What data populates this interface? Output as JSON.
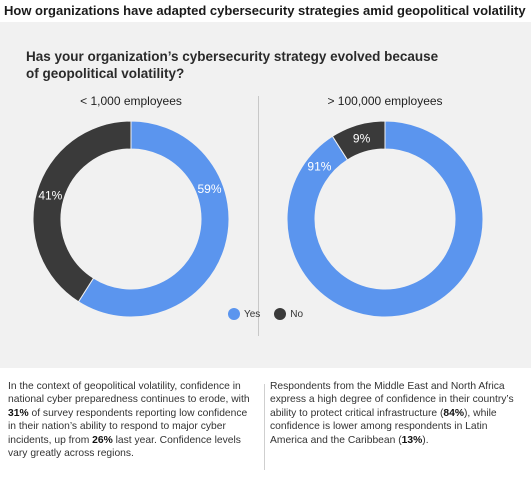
{
  "figure": {
    "title": "How organizations have adapted cybersecurity strategies amid geopolitical volatility",
    "question": "Has your organization’s cybersecurity strategy evolved because of geopolitical volatility?"
  },
  "colors": {
    "yes": "#5b95ee",
    "no": "#3a3a3a",
    "panel": "#f1f1f1"
  },
  "chart_data": [
    {
      "type": "pie",
      "variant": "donut",
      "title": "< 1,000 employees",
      "slices": [
        {
          "label": "Yes",
          "value": 59,
          "display": "59%"
        },
        {
          "label": "No",
          "value": 41,
          "display": "41%"
        }
      ]
    },
    {
      "type": "pie",
      "variant": "donut",
      "title": "> 100,000 employees",
      "slices": [
        {
          "label": "Yes",
          "value": 91,
          "display": "91%"
        },
        {
          "label": "No",
          "value": 9,
          "display": "9%"
        }
      ]
    }
  ],
  "legend": [
    {
      "label": "Yes",
      "series": "yes"
    },
    {
      "label": "No",
      "series": "no"
    }
  ],
  "body_text": {
    "left": {
      "p1": "In the context of geopolitical volatility, confidence in national cyber preparedness continues to erode, with ",
      "b1": "31%",
      "p2": " of survey respondents reporting low confidence in their nation’s ability to respond to major cyber incidents, up from ",
      "b2": "26%",
      "p3": " last year. Confidence levels vary greatly across regions."
    },
    "right": {
      "p1": "Respondents from the Middle East and North Africa express a high degree of confidence in their country’s ability to protect critical infrastructure (",
      "b1": "84%",
      "p2": "), while confidence is lower among respondents in Latin America and the Caribbean (",
      "b2": "13%",
      "p3": ")."
    }
  }
}
